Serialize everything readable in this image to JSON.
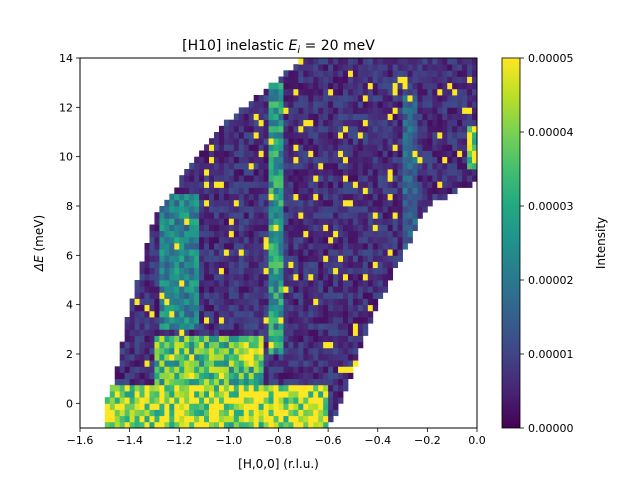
{
  "chart_data": [
    {
      "type": "heatmap",
      "title_prefix": "[H10] inelastic ",
      "title_var": "E",
      "title_sub": "i",
      "title_suffix": " = 20 meV",
      "xlabel": "[H,0,0] (r.l.u.)",
      "ylabel_var": "ΔE",
      "ylabel_unit": " (meV)",
      "xlim": [
        -1.6,
        0.0
      ],
      "ylim": [
        -1.0,
        14.0
      ],
      "xticks": [
        "−1.6",
        "−1.4",
        "−1.2",
        "−1.0",
        "−0.8",
        "−0.6",
        "−0.4",
        "−0.2",
        "0.0"
      ],
      "yticks": [
        "0",
        "2",
        "4",
        "6",
        "8",
        "10",
        "12",
        "14"
      ],
      "colorbar_label": "Intensity",
      "colorbar_ticks": [
        "0.00000",
        "0.00001",
        "0.00002",
        "0.00003",
        "0.00004",
        "0.00005"
      ],
      "colormap": "viridis",
      "vmin": 0.0,
      "vmax": 5e-05,
      "grid": false,
      "x_bin_width": 0.02,
      "y_bin_width": 0.25,
      "coverage_lower_edge": [
        [
          -1.5,
          -1.0
        ],
        [
          -0.6,
          -1.0
        ],
        [
          -0.55,
          0.0
        ],
        [
          -0.4,
          4.0
        ],
        [
          -0.2,
          8.0
        ],
        [
          0.0,
          9.0
        ]
      ],
      "coverage_upper_edge": [
        [
          -1.5,
          -0.2
        ],
        [
          -1.45,
          1.5
        ],
        [
          -1.4,
          4.0
        ],
        [
          -1.3,
          7.5
        ],
        [
          -1.2,
          9.0
        ],
        [
          -1.0,
          11.5
        ],
        [
          -0.8,
          13.2
        ],
        [
          -0.7,
          14.0
        ],
        [
          0.0,
          14.0
        ]
      ],
      "features": [
        {
          "x_range": [
            -1.5,
            -0.6
          ],
          "E_range": [
            -1.0,
            0.8
          ],
          "intensity": 5e-05
        },
        {
          "x_range": [
            -1.3,
            -0.85
          ],
          "E_range": [
            0.8,
            2.8
          ],
          "intensity": 3.8e-05
        },
        {
          "x_range": [
            -0.95,
            -0.85
          ],
          "E_range": [
            1.5,
            2.3
          ],
          "intensity": 5e-05
        },
        {
          "x_range": [
            -0.84,
            -0.78
          ],
          "E_range": [
            2.0,
            13.0
          ],
          "intensity": 3e-05
        },
        {
          "x_range": [
            -1.28,
            -1.12
          ],
          "E_range": [
            3.0,
            8.5
          ],
          "intensity": 2.5e-05
        },
        {
          "x_range": [
            -0.3,
            -0.24
          ],
          "E_range": [
            2.0,
            12.5
          ],
          "intensity": 1.8e-05
        },
        {
          "x_range": [
            -0.04,
            0.0
          ],
          "E_range": [
            9.5,
            11.2
          ],
          "intensity": 5e-05
        }
      ],
      "background_intensity": 8e-06
    }
  ]
}
